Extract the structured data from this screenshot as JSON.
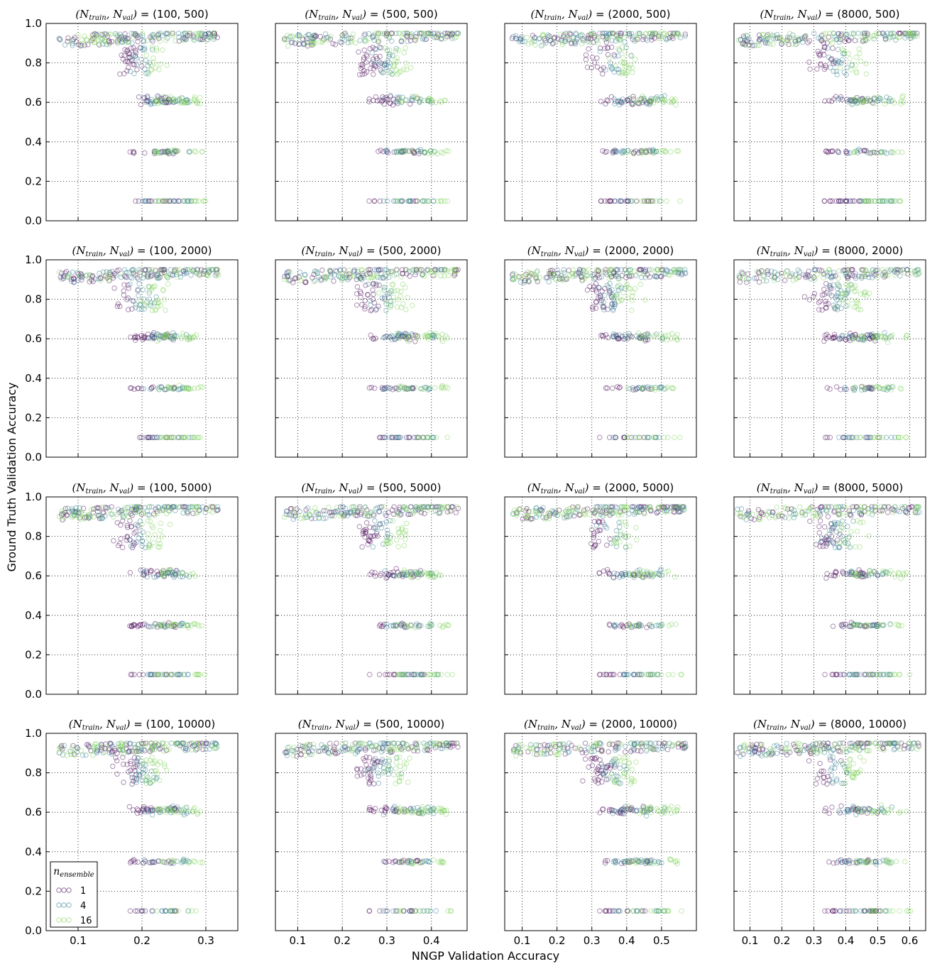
{
  "chart_data": {
    "type": "scatter",
    "xlabel": "NNGP Validation Accuracy",
    "ylabel": "Ground Truth Validation Accuracy",
    "y_ticks": [
      "0.0",
      "0.2",
      "0.4",
      "0.6",
      "0.8",
      "1.0"
    ],
    "ylim": [
      0.0,
      1.0
    ],
    "grid": true,
    "legend": {
      "title": "n_ensemble",
      "placement": "lower-left of bottom-left panel",
      "entries": [
        {
          "label": "1",
          "color": "#440154"
        },
        {
          "label": "4",
          "color": "#2a788e"
        },
        {
          "label": "16",
          "color": "#7ad151"
        }
      ]
    },
    "columns": [
      {
        "n_train": "100",
        "xlim": [
          0.05,
          0.35
        ],
        "x_ticks": [
          "0.1",
          "0.2",
          "0.3"
        ],
        "spread": {
          "min": 0.07,
          "max": 0.32,
          "tail": 0.18
        }
      },
      {
        "n_train": "500",
        "xlim": [
          0.05,
          0.48
        ],
        "x_ticks": [
          "0.1",
          "0.2",
          "0.3",
          "0.4"
        ],
        "spread": {
          "min": 0.07,
          "max": 0.46,
          "tail": 0.26
        }
      },
      {
        "n_train": "2000",
        "xlim": [
          0.05,
          0.6
        ],
        "x_ticks": [
          "0.1",
          "0.2",
          "0.3",
          "0.4",
          "0.5"
        ],
        "spread": {
          "min": 0.07,
          "max": 0.57,
          "tail": 0.32
        }
      },
      {
        "n_train": "8000",
        "xlim": [
          0.05,
          0.65
        ],
        "x_ticks": [
          "0.1",
          "0.2",
          "0.3",
          "0.4",
          "0.5",
          "0.6"
        ],
        "spread": {
          "min": 0.06,
          "max": 0.63,
          "tail": 0.33
        }
      }
    ],
    "rows": [
      {
        "n_val": "500"
      },
      {
        "n_val": "2000"
      },
      {
        "n_val": "5000"
      },
      {
        "n_val": "10000"
      }
    ],
    "panels": [
      {
        "title": "(100, 500)"
      },
      {
        "title": "(500, 500)"
      },
      {
        "title": "(2000, 500)"
      },
      {
        "title": "(8000, 500)"
      },
      {
        "title": "(100, 2000)"
      },
      {
        "title": "(500, 2000)"
      },
      {
        "title": "(2000, 2000)"
      },
      {
        "title": "(8000, 2000)"
      },
      {
        "title": "(100, 5000)"
      },
      {
        "title": "(500, 5000)"
      },
      {
        "title": "(2000, 5000)"
      },
      {
        "title": "(8000, 5000)"
      },
      {
        "title": "(100, 10000)"
      },
      {
        "title": "(500, 10000)"
      },
      {
        "title": "(2000, 10000)"
      },
      {
        "title": "(8000, 10000)"
      }
    ],
    "title_prefix_math": "(N_train, N_val)",
    "y_clusters": [
      0.93,
      0.88,
      0.8,
      0.7,
      0.61,
      0.35,
      0.1
    ]
  }
}
